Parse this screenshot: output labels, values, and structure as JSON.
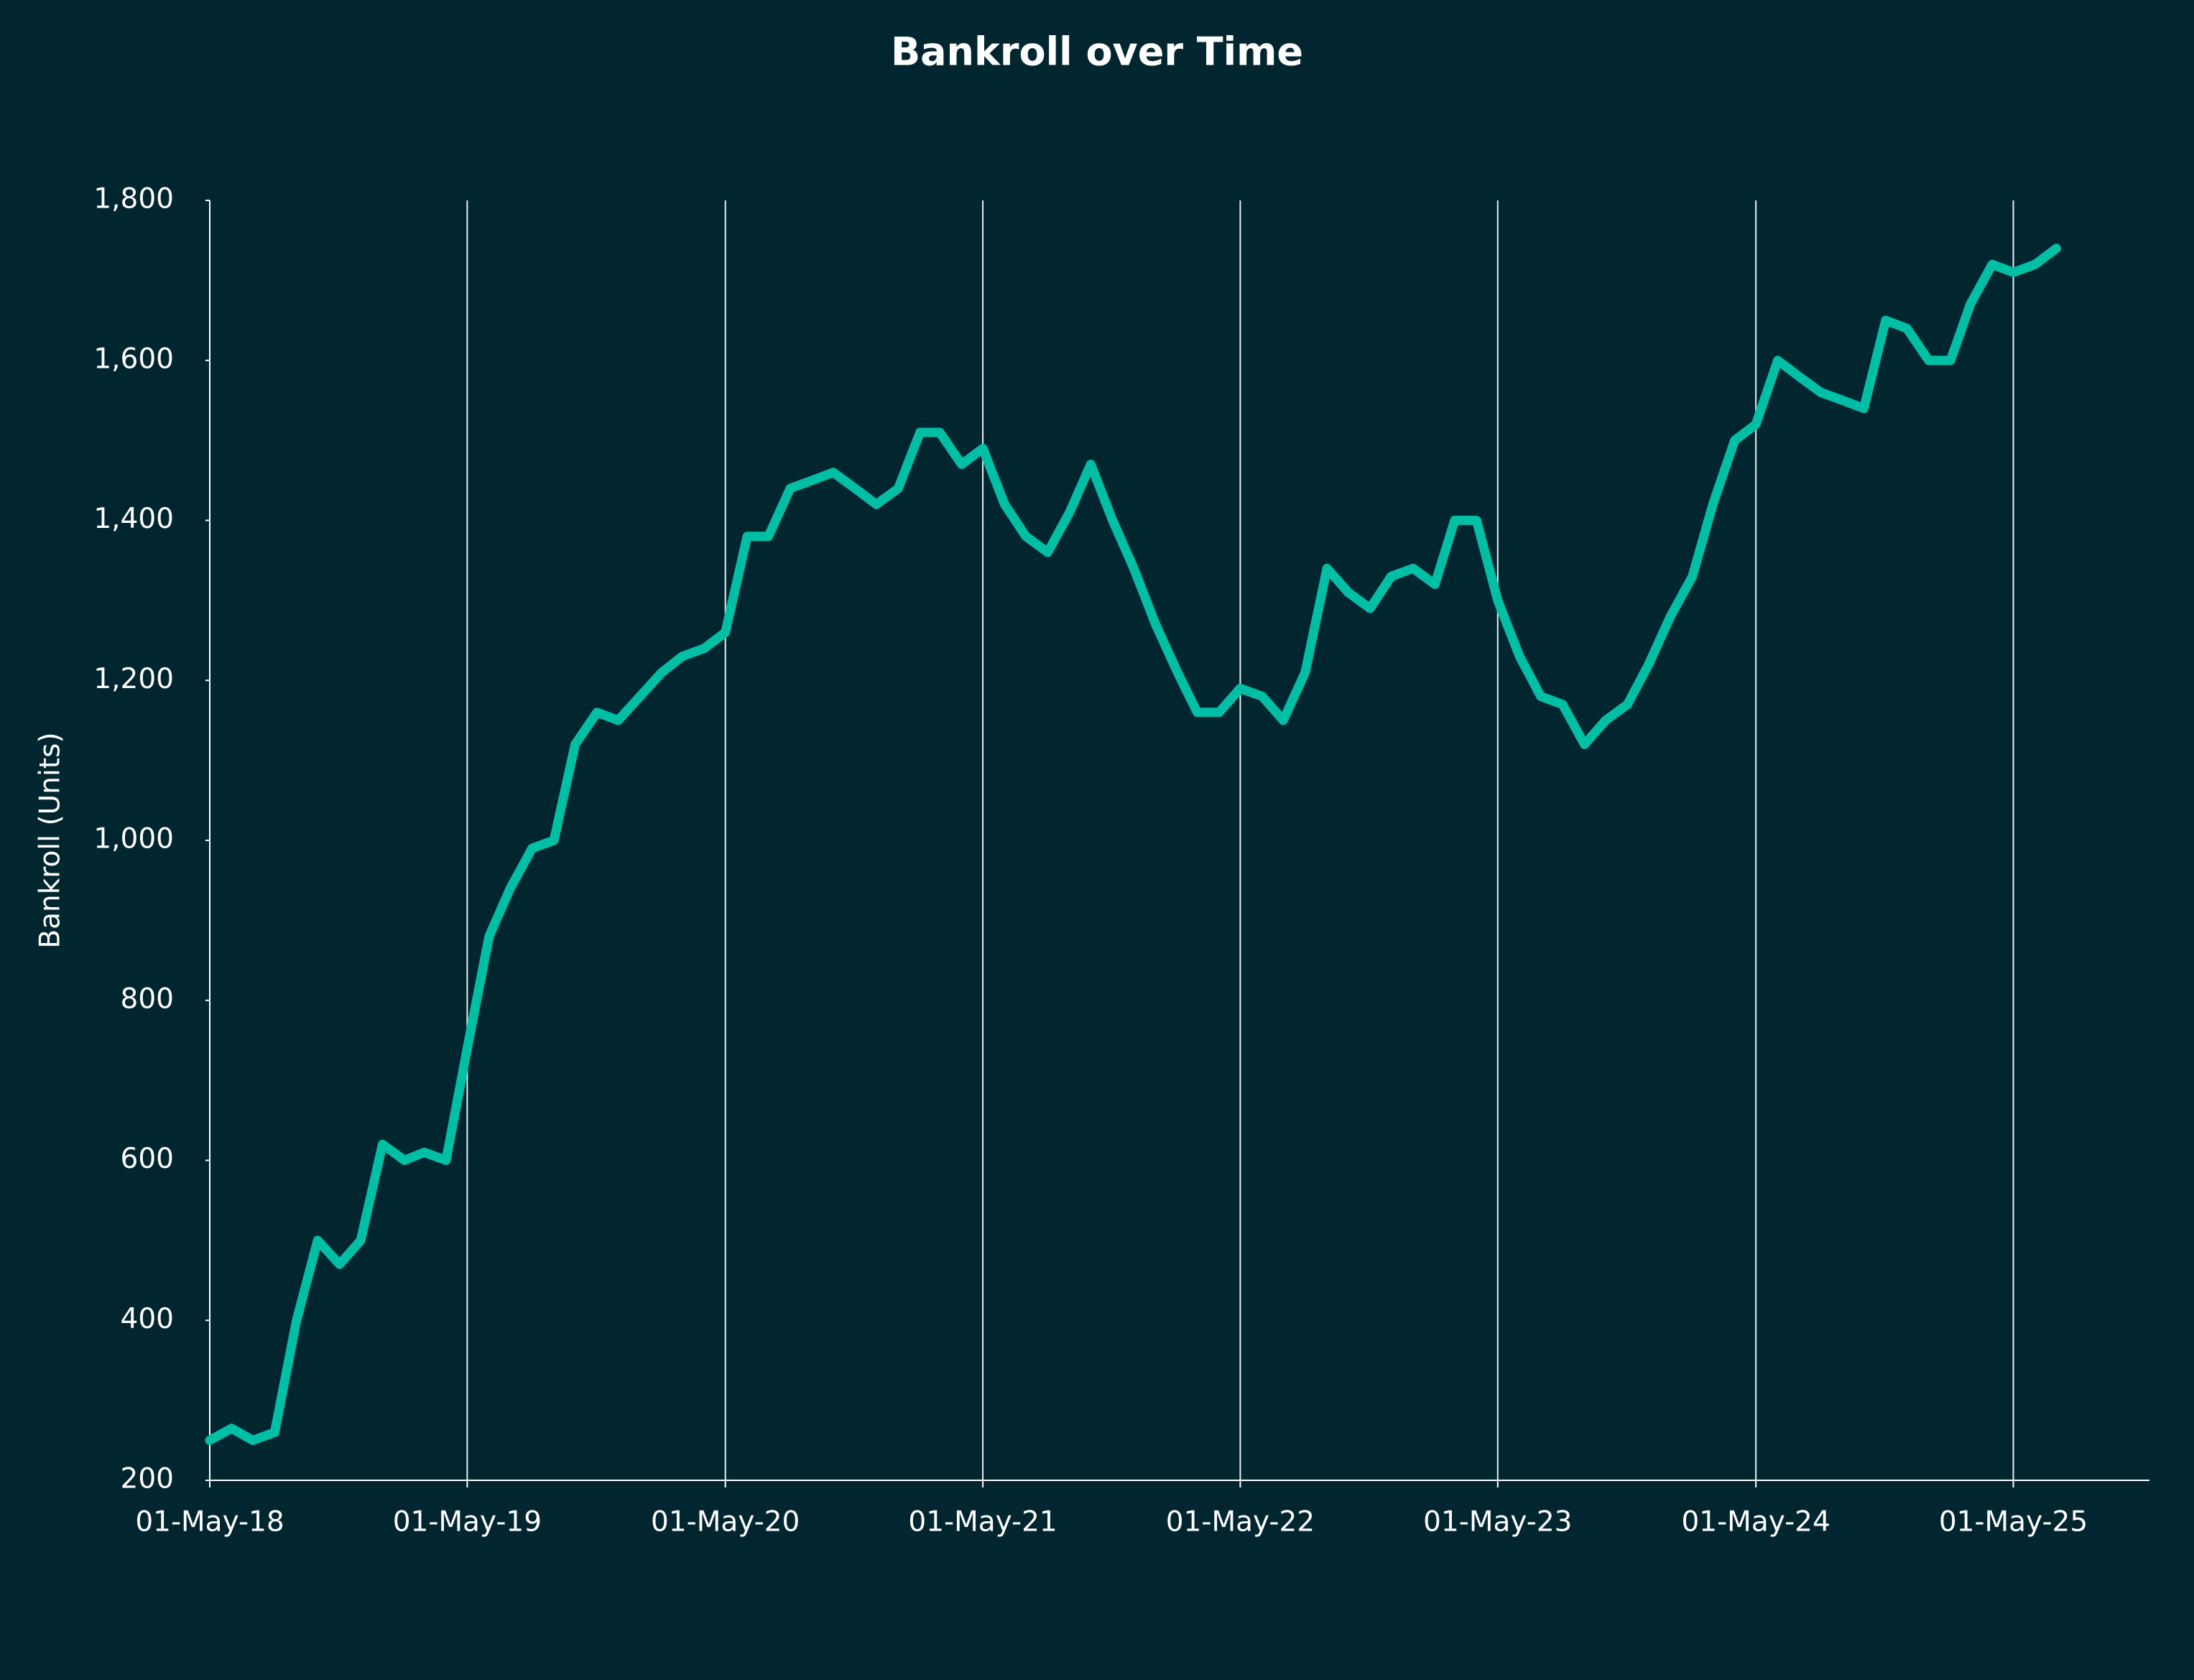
{
  "chart_data": {
    "type": "line",
    "title": "Bankroll over Time",
    "y_label": "Bankroll (Units)",
    "x": [
      "2018-05-01",
      "2018-06-01",
      "2018-07-01",
      "2018-08-01",
      "2018-09-01",
      "2018-10-01",
      "2018-11-01",
      "2018-12-01",
      "2019-01-01",
      "2019-02-01",
      "2019-03-01",
      "2019-04-01",
      "2019-05-01",
      "2019-06-01",
      "2019-07-01",
      "2019-08-01",
      "2019-09-01",
      "2019-10-01",
      "2019-11-01",
      "2019-12-01",
      "2020-01-01",
      "2020-02-01",
      "2020-03-01",
      "2020-04-01",
      "2020-05-01",
      "2020-06-01",
      "2020-07-01",
      "2020-08-01",
      "2020-09-01",
      "2020-10-01",
      "2020-11-01",
      "2020-12-01",
      "2021-01-01",
      "2021-02-01",
      "2021-03-01",
      "2021-04-01",
      "2021-05-01",
      "2021-06-01",
      "2021-07-01",
      "2021-08-01",
      "2021-09-01",
      "2021-10-01",
      "2021-11-01",
      "2021-12-01",
      "2022-01-01",
      "2022-02-01",
      "2022-03-01",
      "2022-04-01",
      "2022-05-01",
      "2022-06-01",
      "2022-07-01",
      "2022-08-01",
      "2022-09-01",
      "2022-10-01",
      "2022-11-01",
      "2022-12-01",
      "2023-01-01",
      "2023-02-01",
      "2023-03-01",
      "2023-04-01",
      "2023-05-01",
      "2023-06-01",
      "2023-07-01",
      "2023-08-01",
      "2023-09-01",
      "2023-10-01",
      "2023-11-01",
      "2023-12-01",
      "2024-01-01",
      "2024-02-01",
      "2024-03-01",
      "2024-04-01",
      "2024-05-01",
      "2024-06-01",
      "2024-07-01",
      "2024-08-01",
      "2024-09-01",
      "2024-10-01",
      "2024-11-01",
      "2024-12-01",
      "2025-01-01",
      "2025-02-01",
      "2025-03-01",
      "2025-04-01",
      "2025-05-01",
      "2025-06-01",
      "2025-07-01"
    ],
    "values": [
      250,
      265,
      250,
      260,
      400,
      500,
      470,
      500,
      620,
      600,
      610,
      600,
      740,
      880,
      940,
      990,
      1000,
      1120,
      1160,
      1150,
      1180,
      1210,
      1230,
      1240,
      1260,
      1380,
      1380,
      1440,
      1450,
      1460,
      1440,
      1420,
      1440,
      1510,
      1510,
      1470,
      1490,
      1420,
      1380,
      1360,
      1410,
      1470,
      1400,
      1340,
      1270,
      1210,
      1160,
      1160,
      1190,
      1180,
      1150,
      1210,
      1340,
      1310,
      1290,
      1330,
      1340,
      1320,
      1400,
      1400,
      1300,
      1230,
      1180,
      1170,
      1120,
      1150,
      1170,
      1220,
      1280,
      1330,
      1420,
      1500,
      1520,
      1600,
      1580,
      1560,
      1550,
      1540,
      1650,
      1640,
      1600,
      1600,
      1670,
      1720,
      1710,
      1720,
      1740
    ],
    "color": "#00bfa5",
    "xlim": [
      "2018-05-01",
      "2025-11-10"
    ],
    "xticks": [
      {
        "value": "2018-05-01",
        "label": "01-May-18"
      },
      {
        "value": "2019-05-01",
        "label": "01-May-19"
      },
      {
        "value": "2020-05-01",
        "label": "01-May-20"
      },
      {
        "value": "2021-05-01",
        "label": "01-May-21"
      },
      {
        "value": "2022-05-01",
        "label": "01-May-22"
      },
      {
        "value": "2023-05-01",
        "label": "01-May-23"
      },
      {
        "value": "2024-05-01",
        "label": "01-May-24"
      },
      {
        "value": "2025-05-01",
        "label": "01-May-25"
      }
    ],
    "ylim": [
      200,
      1800
    ],
    "yticks": [
      200,
      400,
      600,
      800,
      {
        "value": 1000,
        "label": "1,000"
      },
      {
        "value": 1200,
        "label": "1,200"
      },
      {
        "value": 1400,
        "label": "1,400"
      },
      {
        "value": 1600,
        "label": "1,600"
      },
      {
        "value": 1800,
        "label": "1,800"
      }
    ],
    "grid": "x"
  }
}
